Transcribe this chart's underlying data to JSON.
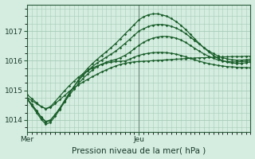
{
  "background_color": "#d4ede0",
  "grid_color": "#a8ccb8",
  "line_color": "#1a5e2a",
  "marker_color": "#1a5e2a",
  "title": "Pression niveau de la mer( hPa )",
  "xlabel_day1": "Mer",
  "xlabel_day2": "Jeu",
  "ylim": [
    1013.6,
    1017.9
  ],
  "yticks": [
    1014,
    1015,
    1016,
    1017
  ],
  "n_points": 49,
  "day1_idx": 0,
  "day2_idx": 24,
  "vline_x": 24,
  "series": [
    [
      1014.75,
      1014.65,
      1014.55,
      1014.45,
      1014.38,
      1014.42,
      1014.55,
      1014.68,
      1014.82,
      1014.96,
      1015.08,
      1015.18,
      1015.28,
      1015.37,
      1015.46,
      1015.54,
      1015.62,
      1015.69,
      1015.76,
      1015.82,
      1015.87,
      1015.91,
      1015.94,
      1015.96,
      1015.97,
      1015.98,
      1015.99,
      1016.0,
      1016.01,
      1016.02,
      1016.03,
      1016.04,
      1016.05,
      1016.06,
      1016.07,
      1016.08,
      1016.09,
      1016.1,
      1016.1,
      1016.11,
      1016.11,
      1016.12,
      1016.13,
      1016.13,
      1016.14,
      1016.14,
      1016.14,
      1016.15,
      1016.15
    ],
    [
      1014.85,
      1014.72,
      1014.58,
      1014.45,
      1014.38,
      1014.45,
      1014.62,
      1014.8,
      1014.98,
      1015.15,
      1015.3,
      1015.44,
      1015.56,
      1015.66,
      1015.75,
      1015.82,
      1015.88,
      1015.92,
      1015.95,
      1015.97,
      1015.98,
      1015.99,
      1016.05,
      1016.12,
      1016.18,
      1016.22,
      1016.25,
      1016.27,
      1016.28,
      1016.28,
      1016.27,
      1016.25,
      1016.22,
      1016.18,
      1016.13,
      1016.08,
      1016.03,
      1015.98,
      1015.94,
      1015.9,
      1015.87,
      1015.84,
      1015.82,
      1015.8,
      1015.79,
      1015.78,
      1015.77,
      1015.77,
      1015.76
    ],
    [
      1014.7,
      1014.52,
      1014.32,
      1014.1,
      1013.95,
      1014.0,
      1014.18,
      1014.38,
      1014.6,
      1014.82,
      1015.03,
      1015.22,
      1015.4,
      1015.55,
      1015.68,
      1015.8,
      1015.88,
      1015.95,
      1016.0,
      1016.04,
      1016.1,
      1016.18,
      1016.28,
      1016.4,
      1016.52,
      1016.62,
      1016.7,
      1016.76,
      1016.8,
      1016.82,
      1016.82,
      1016.8,
      1016.76,
      1016.7,
      1016.62,
      1016.52,
      1016.42,
      1016.32,
      1016.23,
      1016.15,
      1016.08,
      1016.03,
      1015.99,
      1015.97,
      1015.96,
      1015.96,
      1015.97,
      1015.98,
      1016.0
    ],
    [
      1014.72,
      1014.52,
      1014.3,
      1014.08,
      1013.92,
      1013.98,
      1014.18,
      1014.4,
      1014.65,
      1014.9,
      1015.12,
      1015.32,
      1015.5,
      1015.66,
      1015.8,
      1015.92,
      1016.02,
      1016.12,
      1016.22,
      1016.32,
      1016.45,
      1016.58,
      1016.72,
      1016.86,
      1017.0,
      1017.08,
      1017.15,
      1017.2,
      1017.22,
      1017.22,
      1017.2,
      1017.16,
      1017.1,
      1017.02,
      1016.92,
      1016.8,
      1016.68,
      1016.56,
      1016.44,
      1016.33,
      1016.24,
      1016.16,
      1016.1,
      1016.06,
      1016.03,
      1016.02,
      1016.02,
      1016.03,
      1016.05
    ],
    [
      1014.7,
      1014.48,
      1014.25,
      1014.02,
      1013.85,
      1013.92,
      1014.12,
      1014.35,
      1014.6,
      1014.87,
      1015.12,
      1015.35,
      1015.56,
      1015.74,
      1015.9,
      1016.04,
      1016.18,
      1016.3,
      1016.44,
      1016.58,
      1016.74,
      1016.9,
      1017.06,
      1017.22,
      1017.38,
      1017.48,
      1017.55,
      1017.58,
      1017.58,
      1017.55,
      1017.5,
      1017.42,
      1017.32,
      1017.2,
      1017.06,
      1016.9,
      1016.74,
      1016.58,
      1016.43,
      1016.3,
      1016.18,
      1016.08,
      1016.0,
      1015.95,
      1015.92,
      1015.91,
      1015.91,
      1015.93,
      1015.96
    ]
  ]
}
